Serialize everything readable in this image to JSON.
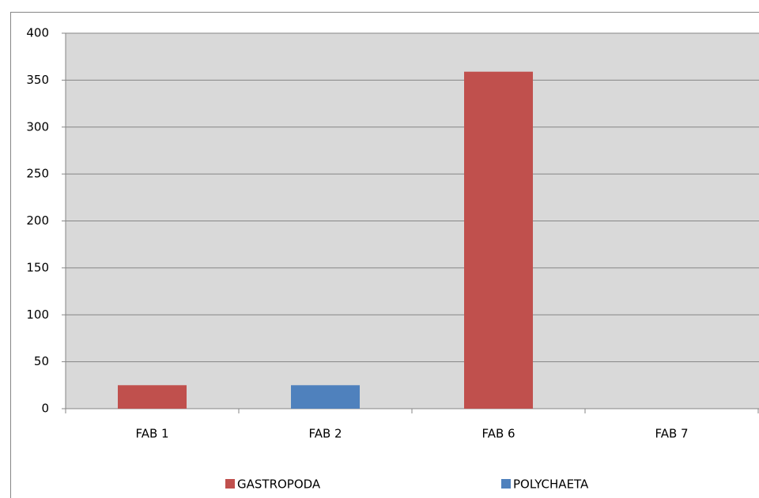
{
  "chart_data": {
    "type": "bar",
    "categories": [
      "FAB 1",
      "FAB 2",
      "FAB 6",
      "FAB 7"
    ],
    "series": [
      {
        "name": "GASTROPODA",
        "color": "#c0504d",
        "values": [
          25,
          0,
          359,
          0
        ]
      },
      {
        "name": "POLYCHAETA",
        "color": "#4f81bd",
        "values": [
          0,
          25,
          0,
          0
        ]
      }
    ],
    "ylim": [
      0,
      400
    ],
    "yticks": [
      0,
      50,
      100,
      150,
      200,
      250,
      300,
      350,
      400
    ],
    "grid": true,
    "legend": "bottom"
  }
}
